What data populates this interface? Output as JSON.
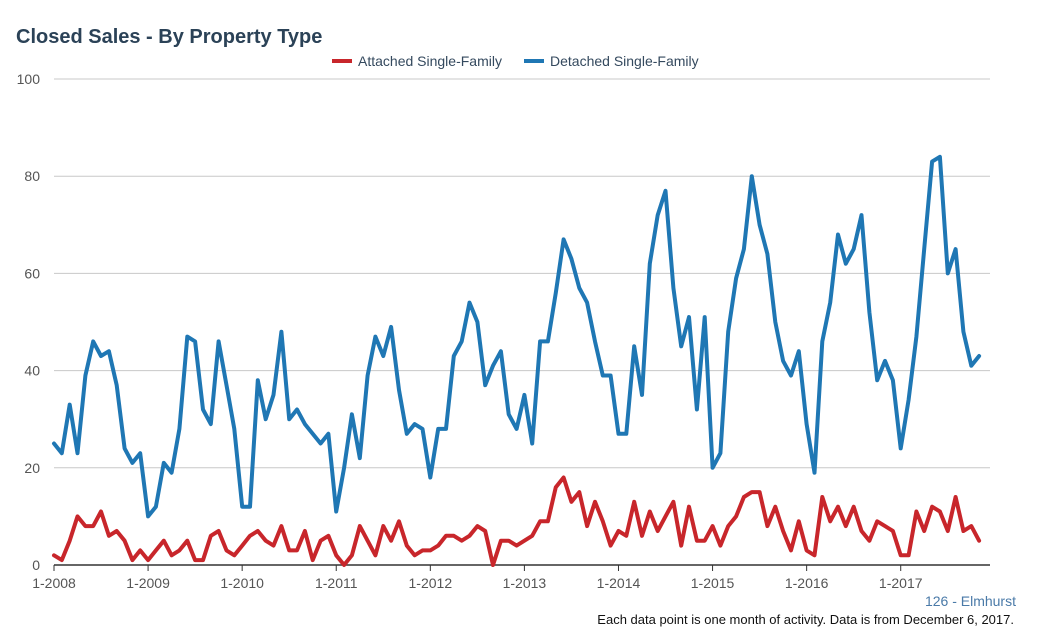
{
  "chart_data": {
    "type": "line",
    "title": "Closed Sales - By Property Type",
    "xlabel": "",
    "ylabel": "",
    "ylim": [
      0,
      100
    ],
    "yticks": [
      "0",
      "20",
      "40",
      "60",
      "80",
      "100"
    ],
    "xticks": [
      "1-2008",
      "1-2009",
      "1-2010",
      "1-2011",
      "1-2012",
      "1-2013",
      "1-2014",
      "1-2015",
      "1-2016",
      "1-2017"
    ],
    "x_start": "2008-01",
    "x_interval": "month",
    "grid": true,
    "legend_position": "top",
    "series": [
      {
        "name": "Attached Single-Family",
        "color": "#c8262b",
        "values": [
          2,
          1,
          5,
          10,
          8,
          8,
          11,
          6,
          7,
          5,
          1,
          3,
          1,
          3,
          5,
          2,
          3,
          5,
          1,
          1,
          6,
          7,
          3,
          2,
          4,
          6,
          7,
          5,
          4,
          8,
          3,
          3,
          7,
          1,
          5,
          6,
          2,
          0,
          2,
          8,
          5,
          2,
          8,
          5,
          9,
          4,
          2,
          3,
          3,
          4,
          6,
          6,
          5,
          6,
          8,
          7,
          0,
          5,
          5,
          4,
          5,
          6,
          9,
          9,
          16,
          18,
          13,
          15,
          8,
          13,
          9,
          4,
          7,
          6,
          13,
          6,
          11,
          7,
          10,
          13,
          4,
          12,
          5,
          5,
          8,
          4,
          8,
          10,
          14,
          15,
          15,
          8,
          12,
          7,
          3,
          9,
          3,
          2,
          14,
          9,
          12,
          8,
          12,
          7,
          5,
          9,
          8,
          7,
          2,
          2,
          11,
          7,
          12,
          11,
          7,
          14,
          7,
          8,
          5
        ]
      },
      {
        "name": "Detached Single-Family",
        "color": "#1f77b4",
        "values": [
          25,
          23,
          33,
          23,
          39,
          46,
          43,
          44,
          37,
          24,
          21,
          23,
          10,
          12,
          21,
          19,
          28,
          47,
          46,
          32,
          29,
          46,
          37,
          28,
          12,
          12,
          38,
          30,
          35,
          48,
          30,
          32,
          29,
          27,
          25,
          27,
          11,
          20,
          31,
          22,
          39,
          47,
          43,
          49,
          36,
          27,
          29,
          28,
          18,
          28,
          28,
          43,
          46,
          54,
          50,
          37,
          41,
          44,
          31,
          28,
          35,
          25,
          46,
          46,
          56,
          67,
          63,
          57,
          54,
          46,
          39,
          39,
          27,
          27,
          45,
          35,
          62,
          72,
          77,
          57,
          45,
          51,
          32,
          51,
          20,
          23,
          48,
          59,
          65,
          80,
          70,
          64,
          50,
          42,
          39,
          44,
          29,
          19,
          46,
          54,
          68,
          62,
          65,
          72,
          52,
          38,
          42,
          38,
          24,
          34,
          47,
          65,
          83,
          84,
          60,
          65,
          48,
          41,
          43
        ]
      }
    ]
  },
  "footer": {
    "location": "126 - Elmhurst",
    "note": "Each data point is one month of activity. Data is from December 6, 2017."
  }
}
